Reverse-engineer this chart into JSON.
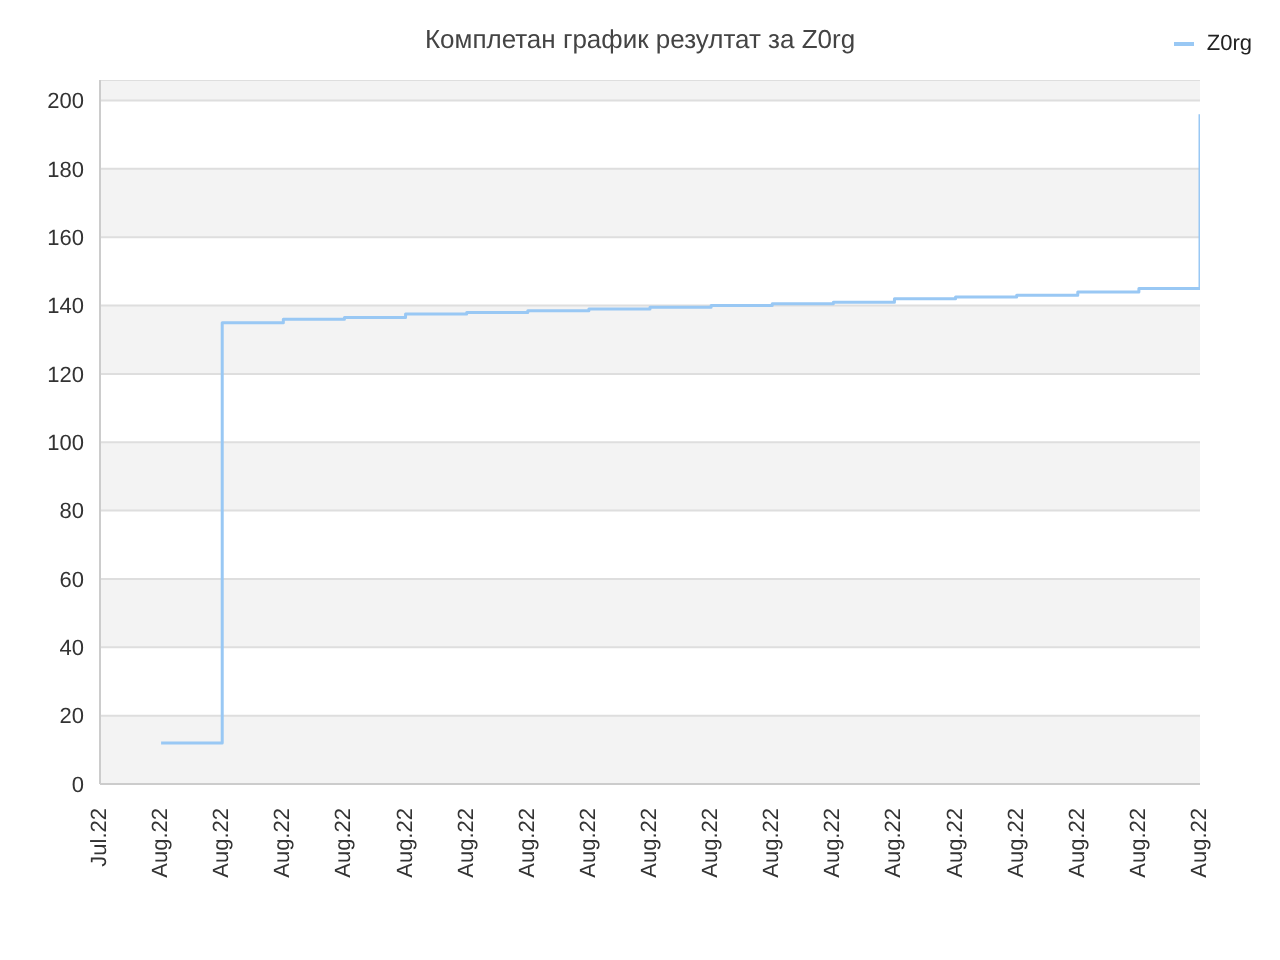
{
  "chart_data": {
    "type": "step",
    "title": "Комплетан график резултат за Z0rg",
    "categories": [
      "Jul.22",
      "Aug.22",
      "Aug.22",
      "Aug.22",
      "Aug.22",
      "Aug.22",
      "Aug.22",
      "Aug.22",
      "Aug.22",
      "Aug.22",
      "Aug.22",
      "Aug.22",
      "Aug.22",
      "Aug.22",
      "Aug.22",
      "Aug.22",
      "Aug.22",
      "Aug.22",
      "Aug.22"
    ],
    "series": [
      {
        "name": "Z0rg",
        "color": "#99c8f4",
        "values": [
          null,
          12,
          135,
          136,
          136.5,
          137.5,
          138,
          138.5,
          139,
          139.5,
          140,
          140.5,
          141,
          142,
          142.5,
          143,
          144,
          145,
          196
        ]
      }
    ],
    "ylim": [
      0,
      206
    ],
    "yticks": [
      0,
      20,
      40,
      60,
      80,
      100,
      120,
      140,
      160,
      180,
      200
    ],
    "grid": "y",
    "legend": "top right",
    "marker": "none"
  }
}
